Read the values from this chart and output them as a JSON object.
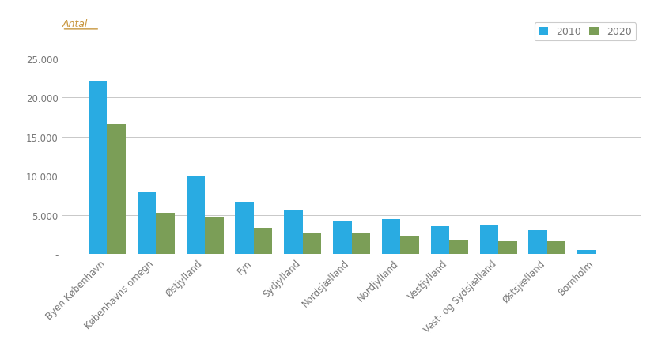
{
  "categories": [
    "Byen København",
    "Københavns omegn",
    "Østjylland",
    "Fyn",
    "Sydjylland",
    "Nordsjælland",
    "Nordjylland",
    "Vestjylland",
    "Vest- og Sydsjælland",
    "Østsjælland",
    "Bornholm"
  ],
  "values_2010": [
    22200,
    7900,
    10000,
    6700,
    5600,
    4300,
    4500,
    3500,
    3700,
    3000,
    500
  ],
  "values_2020": [
    16600,
    5300,
    4800,
    3300,
    2600,
    2600,
    2200,
    1700,
    1600,
    1600,
    0
  ],
  "color_2010": "#29ABE2",
  "color_2020": "#7B9E57",
  "ylabel_text": "Antal",
  "ylabel_color": "#C8963E",
  "legend_labels": [
    "2010",
    "2020"
  ],
  "ylim": [
    0,
    27000
  ],
  "yticks": [
    0,
    5000,
    10000,
    15000,
    20000,
    25000
  ],
  "ytick_labels": [
    "-",
    "5.000",
    "10.000",
    "15.000",
    "20.000",
    "25.000"
  ],
  "background_color": "#FFFFFF",
  "grid_color": "#C8C8C8",
  "bar_width": 0.38,
  "axis_label_fontsize": 8.5,
  "legend_fontsize": 9,
  "ylabel_fontsize": 9,
  "tick_color": "#777777",
  "legend_text_color": "#777777"
}
